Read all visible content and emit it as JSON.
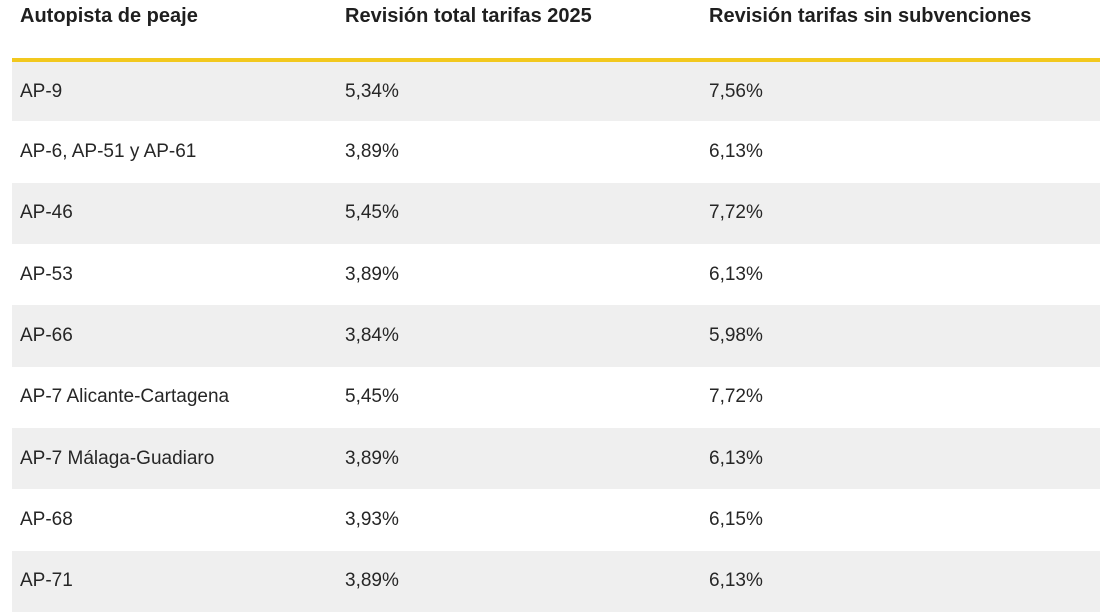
{
  "colors": {
    "accent_yellow": "#F2C81E",
    "alt_row_bg": "#EFEFEF",
    "header_text": "#1F1F1F",
    "cell_text": "#262626",
    "background": "#FFFFFF"
  },
  "chart_data": {
    "type": "table",
    "title": "",
    "columns": [
      "Autopista de peaje",
      "Revisión total tarifas 2025",
      "Revisión tarifas sin subvenciones"
    ],
    "rows": [
      [
        "AP-9",
        "5,34%",
        "7,56%"
      ],
      [
        "AP-6, AP-51 y AP-61",
        "3,89%",
        "6,13%"
      ],
      [
        "AP-46",
        "5,45%",
        "7,72%"
      ],
      [
        "AP-53",
        "3,89%",
        "6,13%"
      ],
      [
        "AP-66",
        "3,84%",
        "5,98%"
      ],
      [
        "AP-7 Alicante-Cartagena",
        "5,45%",
        "7,72%"
      ],
      [
        "AP-7 Málaga-Guadiaro",
        "3,89%",
        "6,13%"
      ],
      [
        "AP-68",
        "3,93%",
        "6,15%"
      ],
      [
        "AP-71",
        "3,89%",
        "6,13%"
      ]
    ],
    "layout": {
      "striped_rows": "odd-gray",
      "header_divider_color": "#F2C81E",
      "grid": false
    }
  }
}
